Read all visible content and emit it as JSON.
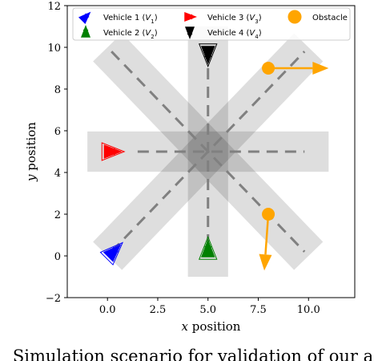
{
  "chart_data": {
    "type": "scatter",
    "title": "",
    "xlabel": "x position",
    "ylabel": "y position",
    "xlim": [
      -2,
      12.3
    ],
    "ylim": [
      -2,
      12
    ],
    "xticks": [
      0,
      2.5,
      5,
      7.5,
      10
    ],
    "xtick_labels": [
      "0.0",
      "2.5",
      "5.0",
      "7.5",
      "10.0"
    ],
    "yticks": [
      -2,
      0,
      2,
      4,
      6,
      8,
      10,
      12
    ],
    "ytick_labels": [
      "−2",
      "0",
      "2",
      "4",
      "6",
      "8",
      "10",
      "12"
    ],
    "grid": false,
    "legend_position": "top",
    "lanes": [
      {
        "start": [
          0,
          0
        ],
        "end": [
          10,
          10
        ],
        "width": 2
      },
      {
        "start": [
          0,
          10
        ],
        "end": [
          10,
          0
        ],
        "width": 2
      },
      {
        "start": [
          5,
          -1
        ],
        "end": [
          5,
          11
        ],
        "width": 2
      },
      {
        "start": [
          -1,
          5
        ],
        "end": [
          11,
          5
        ],
        "width": 2
      }
    ],
    "centerlines": [
      {
        "start": [
          0.2,
          0.2
        ],
        "end": [
          9.8,
          9.8
        ]
      },
      {
        "start": [
          0.2,
          9.8
        ],
        "end": [
          9.8,
          0.2
        ]
      },
      {
        "start": [
          5,
          0.5
        ],
        "end": [
          5,
          9.6
        ]
      },
      {
        "start": [
          1.5,
          5
        ],
        "end": [
          9.8,
          5
        ]
      }
    ],
    "series": [
      {
        "name": "Vehicle 1 ($V_1$)",
        "color": "#0000ff",
        "position": [
          0.3,
          0.2
        ],
        "heading": 45
      },
      {
        "name": "Vehicle 2 ($V_2$)",
        "color": "#008000",
        "position": [
          5,
          0.3
        ],
        "heading": 90
      },
      {
        "name": "Vehicle 3 ($V_3$)",
        "color": "#ff0000",
        "position": [
          0.2,
          5
        ],
        "heading": 0
      },
      {
        "name": "Vehicle 4 ($V_4$)",
        "color": "#000000",
        "position": [
          5,
          9.7
        ],
        "heading": -90
      }
    ],
    "obstacles": [
      {
        "name": "Obstacle",
        "color": "#ffa500",
        "position": [
          8,
          9
        ],
        "arrow_to": [
          11,
          9
        ]
      },
      {
        "name": "Obstacle",
        "color": "#ffa500",
        "position": [
          8,
          2
        ],
        "arrow_to": [
          7.8,
          -0.7
        ]
      }
    ],
    "legend": {
      "entries": [
        "Vehicle 1 ($V_1$)",
        "Vehicle 2 ($V_2$)",
        "Vehicle 3 ($V_3$)",
        "Vehicle 4 ($V_4$)",
        "Obstacle"
      ]
    }
  },
  "caption": "Simulation scenario for validation of our a"
}
